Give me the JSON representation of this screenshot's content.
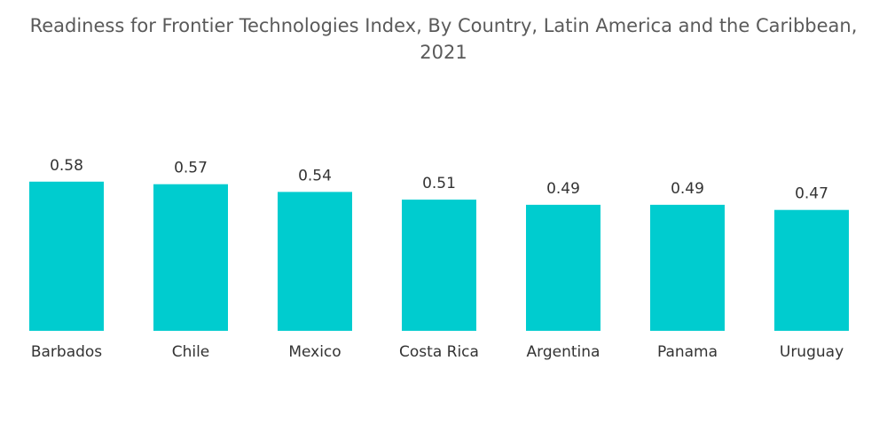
{
  "chart_data": {
    "type": "bar",
    "title": "Readiness for Frontier Technologies Index, By Country, Latin America and the Caribbean, 2021",
    "categories": [
      "Barbados",
      "Chile",
      "Mexico",
      "Costa Rica",
      "Argentina",
      "Panama",
      "Uruguay"
    ],
    "values": [
      0.58,
      0.57,
      0.54,
      0.51,
      0.49,
      0.49,
      0.47
    ],
    "color": "#00cccf"
  }
}
